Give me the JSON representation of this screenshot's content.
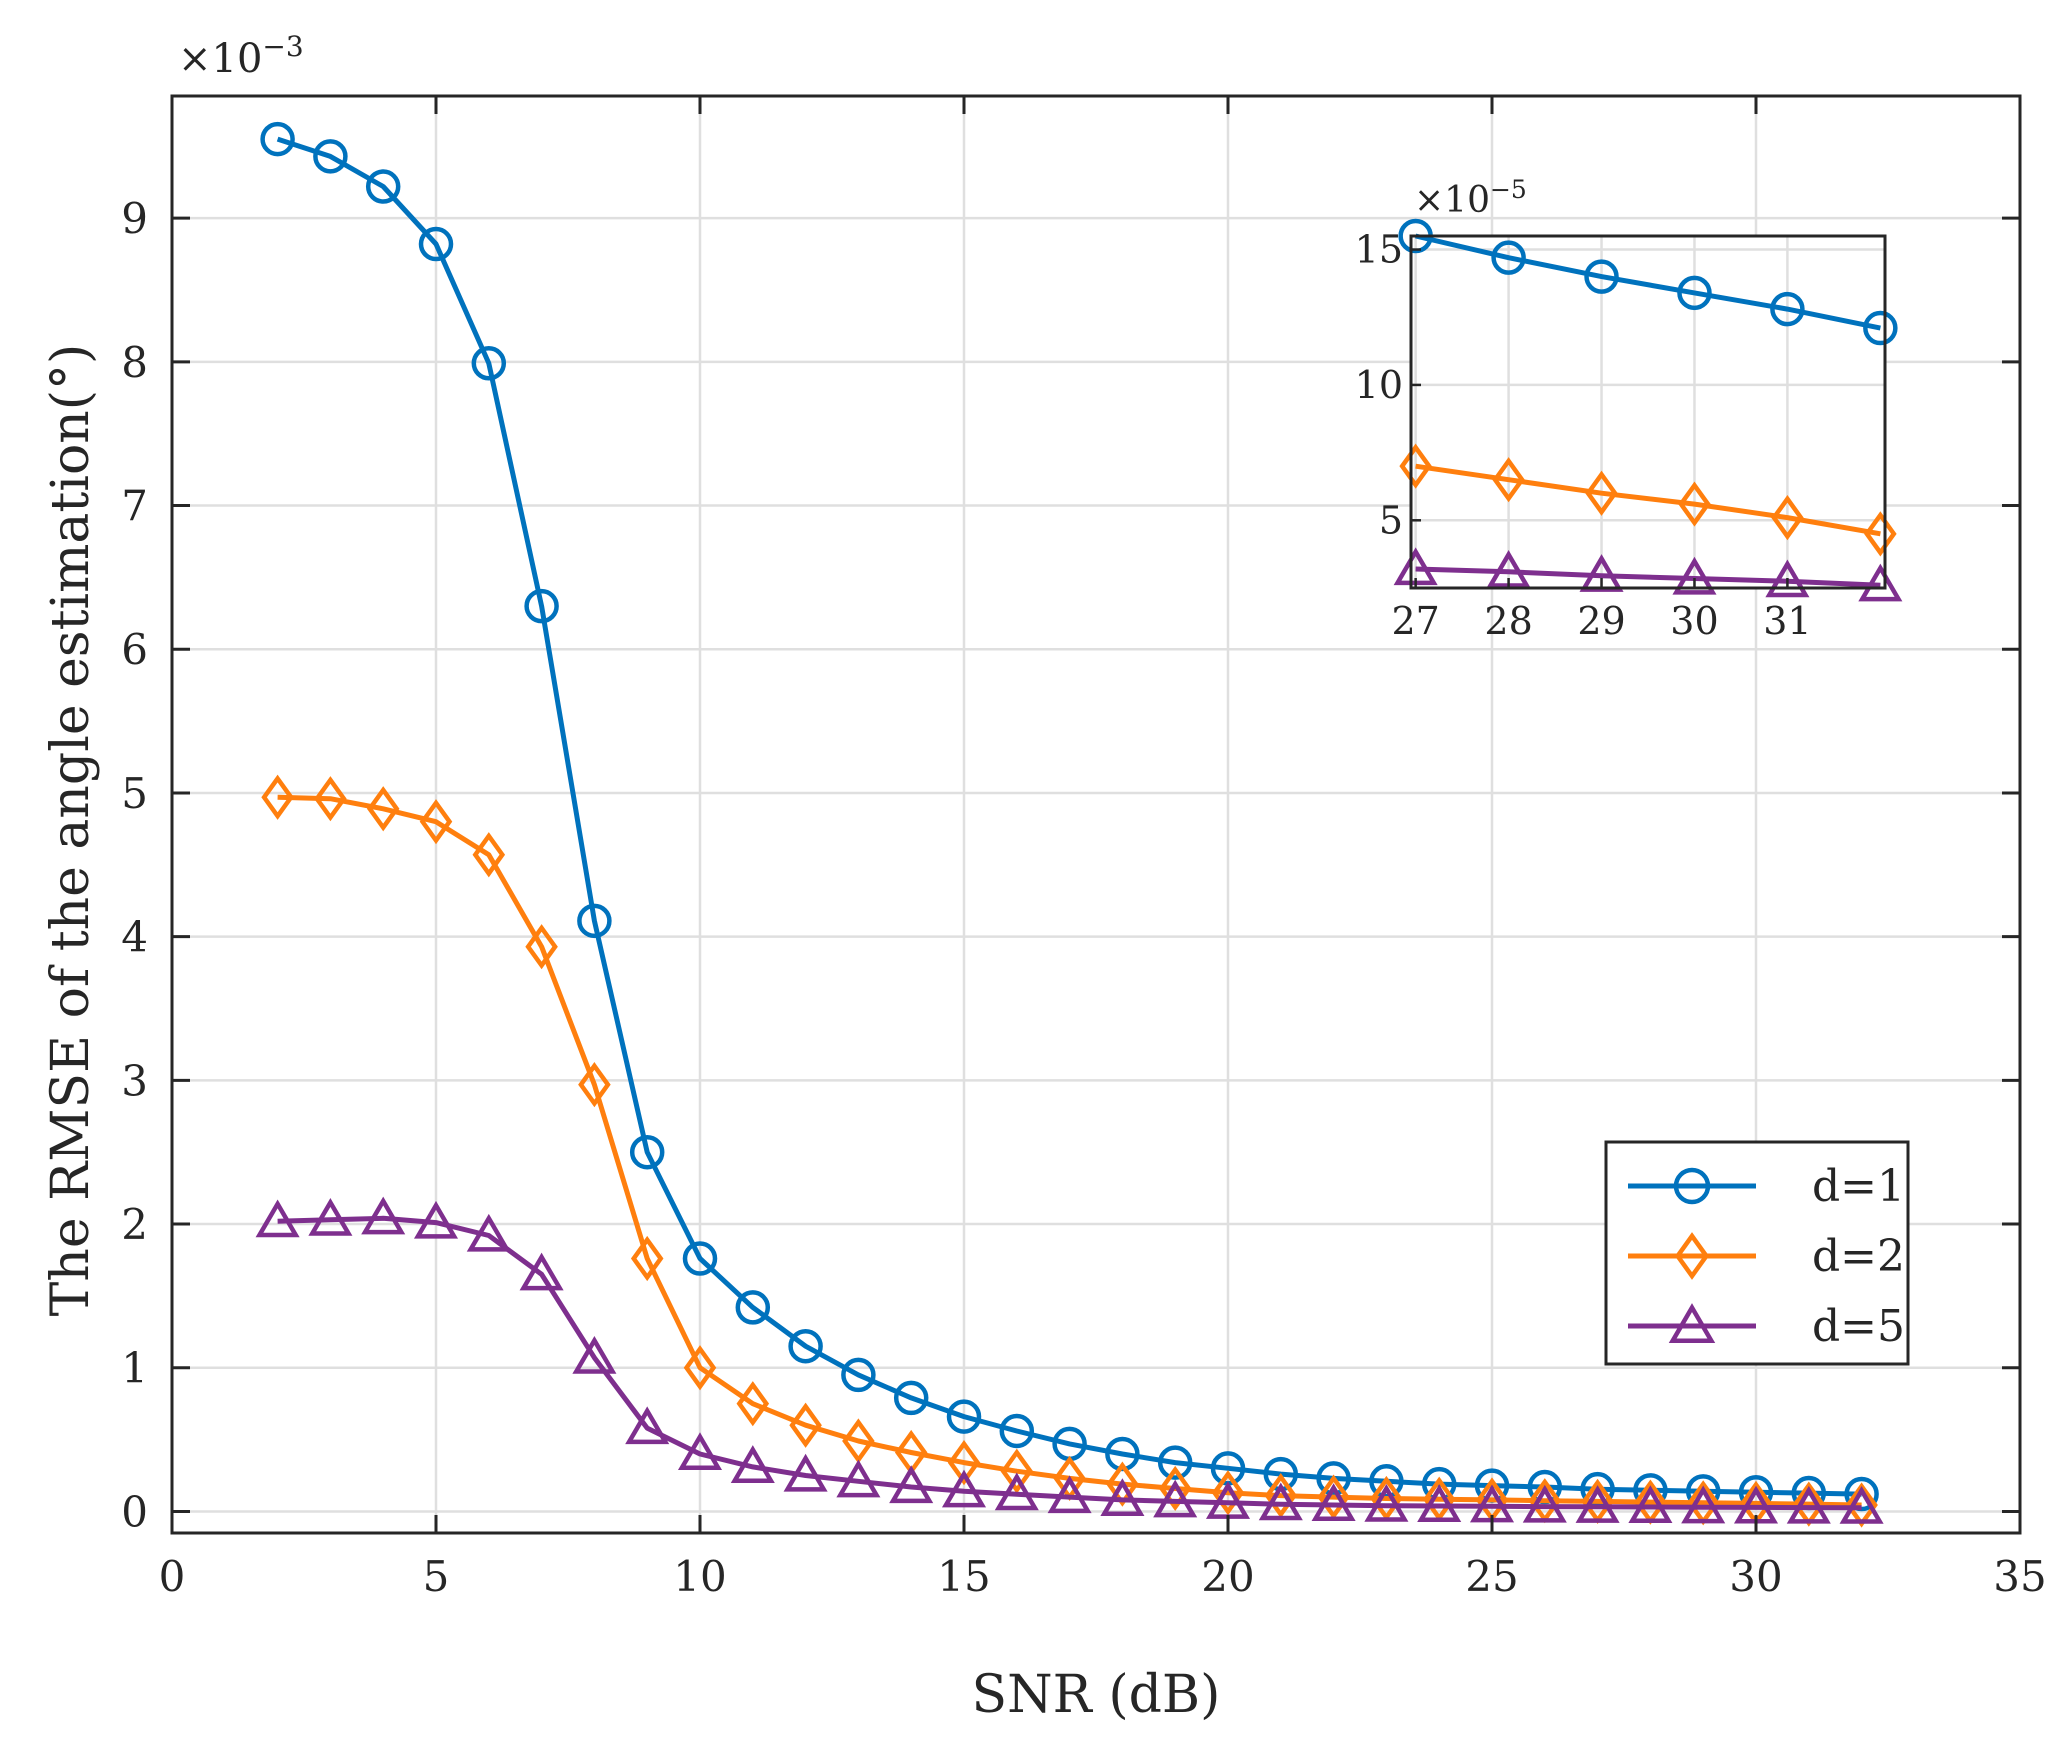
{
  "chart_data": {
    "type": "line",
    "xlabel": "SNR (dB)",
    "ylabel": "The RMSE of the angle estimation(°)",
    "y_exponent_label": "×10",
    "y_exponent": "−3",
    "xlim": [
      0,
      35
    ],
    "ylim": [
      -0.15,
      9.85
    ],
    "xticks": [
      0,
      5,
      10,
      15,
      20,
      25,
      30,
      35
    ],
    "yticks": [
      0,
      1,
      2,
      3,
      4,
      5,
      6,
      7,
      8,
      9
    ],
    "grid": true,
    "legend_position": "lower-right",
    "x": [
      2,
      3,
      4,
      5,
      6,
      7,
      8,
      9,
      10,
      11,
      12,
      13,
      14,
      15,
      16,
      17,
      18,
      19,
      20,
      21,
      22,
      23,
      24,
      25,
      26,
      27,
      28,
      29,
      30,
      31,
      32
    ],
    "series": [
      {
        "name": "d=1",
        "color": "#0072BD",
        "marker": "circle",
        "values": [
          9.55,
          9.43,
          9.22,
          8.82,
          7.99,
          6.3,
          4.11,
          2.5,
          1.76,
          1.42,
          1.15,
          0.95,
          0.79,
          0.66,
          0.56,
          0.47,
          0.4,
          0.34,
          0.3,
          0.26,
          0.23,
          0.21,
          0.19,
          0.18,
          0.17,
          0.155,
          0.147,
          0.14,
          0.134,
          0.128,
          0.121
        ]
      },
      {
        "name": "d=2",
        "color": "#D95319",
        "marker": "diamond",
        "values": [
          4.97,
          4.96,
          4.89,
          4.8,
          4.57,
          3.93,
          2.97,
          1.76,
          1.0,
          0.75,
          0.6,
          0.49,
          0.41,
          0.34,
          0.28,
          0.23,
          0.19,
          0.16,
          0.13,
          0.11,
          0.1,
          0.09,
          0.085,
          0.08,
          0.075,
          0.07,
          0.065,
          0.06,
          0.056,
          0.051,
          0.045
        ]
      },
      {
        "name": "d=5",
        "color": "#7E2F8E",
        "marker": "triangle",
        "values": [
          2.02,
          2.03,
          2.04,
          2.01,
          1.92,
          1.65,
          1.07,
          0.58,
          0.4,
          0.31,
          0.25,
          0.21,
          0.17,
          0.14,
          0.12,
          0.1,
          0.08,
          0.07,
          0.06,
          0.05,
          0.045,
          0.04,
          0.038,
          0.036,
          0.034,
          0.032,
          0.031,
          0.029,
          0.028,
          0.027,
          0.026
        ]
      }
    ],
    "inset": {
      "xlim": [
        26.95,
        32.05
      ],
      "ylim": [
        2.5,
        15.5
      ],
      "xticks": [
        27,
        28,
        29,
        30,
        31
      ],
      "yticks": [
        5,
        10,
        15
      ],
      "y_exponent_label": "×10",
      "y_exponent": "−5",
      "x": [
        27,
        28,
        29,
        30,
        31,
        32
      ],
      "series": [
        {
          "name": "d=1",
          "values": [
            15.5,
            14.7,
            14.0,
            13.4,
            12.8,
            12.1
          ]
        },
        {
          "name": "d=2",
          "values": [
            7.0,
            6.5,
            6.0,
            5.6,
            5.1,
            4.5
          ]
        },
        {
          "name": "d=5",
          "values": [
            3.2,
            3.1,
            2.95,
            2.85,
            2.75,
            2.6
          ]
        }
      ]
    }
  }
}
